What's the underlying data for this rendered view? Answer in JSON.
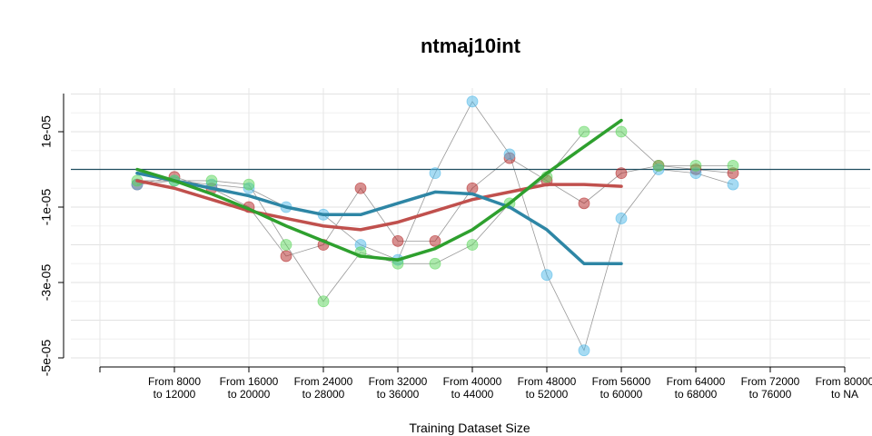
{
  "chart_data": {
    "type": "line",
    "title": "ntmaj10int",
    "xlabel": "Training Dataset Size",
    "ylabel": "",
    "ylim": [
      -5e-05,
      2e-05
    ],
    "y_ticks": [
      "1e-05",
      "-1e-05",
      "-3e-05",
      "-5e-05"
    ],
    "y_tick_values": [
      1e-05,
      -1e-05,
      -3e-05,
      -5e-05
    ],
    "categories": [
      [
        "From 8000",
        "to 12000"
      ],
      [
        "From 16000",
        "to 20000"
      ],
      [
        "From 24000",
        "to 28000"
      ],
      [
        "From 32000",
        "to 36000"
      ],
      [
        "From 40000",
        "to 44000"
      ],
      [
        "From 48000",
        "to 52000"
      ],
      [
        "From 56000",
        "to 60000"
      ],
      [
        "From 64000",
        "to 68000"
      ],
      [
        "From 72000",
        "to 76000"
      ],
      [
        "From 80000",
        "to NA"
      ]
    ],
    "x_positions": [
      1,
      2,
      3,
      4,
      5,
      6,
      7,
      8,
      9,
      10
    ],
    "reference_line_y": 0,
    "grid": true,
    "series": [
      {
        "color": "#b22222",
        "points": [
          {
            "x": 0.5,
            "y": -4e-06
          },
          {
            "x": 1,
            "y": -2e-06
          },
          {
            "x": 1.5,
            "y": -5e-06
          },
          {
            "x": 2,
            "y": -1e-05
          },
          {
            "x": 2.5,
            "y": -2.3e-05
          },
          {
            "x": 3,
            "y": -2e-05
          },
          {
            "x": 3.5,
            "y": -5e-06
          },
          {
            "x": 4,
            "y": -1.9e-05
          },
          {
            "x": 4.5,
            "y": -1.9e-05
          },
          {
            "x": 5,
            "y": -5e-06
          },
          {
            "x": 5.5,
            "y": 3e-06
          },
          {
            "x": 6,
            "y": -3e-06
          },
          {
            "x": 6.5,
            "y": -9e-06
          },
          {
            "x": 7,
            "y": -1e-06
          },
          {
            "x": 7.5,
            "y": 1e-06
          },
          {
            "x": 8,
            "y": 0
          },
          {
            "x": 8.5,
            "y": -1e-06
          }
        ],
        "trend": [
          {
            "x": 0.5,
            "y": -3e-06
          },
          {
            "x": 1,
            "y": -5e-06
          },
          {
            "x": 1.5,
            "y": -8e-06
          },
          {
            "x": 2,
            "y": -1.1e-05
          },
          {
            "x": 2.5,
            "y": -1.3e-05
          },
          {
            "x": 3,
            "y": -1.5e-05
          },
          {
            "x": 3.5,
            "y": -1.6e-05
          },
          {
            "x": 4,
            "y": -1.4e-05
          },
          {
            "x": 4.5,
            "y": -1.1e-05
          },
          {
            "x": 5,
            "y": -8e-06
          },
          {
            "x": 5.5,
            "y": -6e-06
          },
          {
            "x": 6,
            "y": -4e-06
          },
          {
            "x": 6.5,
            "y": -4e-06
          },
          {
            "x": 7,
            "y": -4.5e-06
          }
        ]
      },
      {
        "color": "#4db8e8",
        "points": [
          {
            "x": 0.5,
            "y": -4e-06
          },
          {
            "x": 1,
            "y": -3e-06
          },
          {
            "x": 1.5,
            "y": -4e-06
          },
          {
            "x": 2,
            "y": -5e-06
          },
          {
            "x": 2.5,
            "y": -1e-05
          },
          {
            "x": 3,
            "y": -1.2e-05
          },
          {
            "x": 3.5,
            "y": -2e-05
          },
          {
            "x": 4,
            "y": -2.4e-05
          },
          {
            "x": 4.5,
            "y": -1e-06
          },
          {
            "x": 5,
            "y": 1.8e-05
          },
          {
            "x": 5.5,
            "y": 4e-06
          },
          {
            "x": 6,
            "y": -2.8e-05
          },
          {
            "x": 6.5,
            "y": -4.8e-05
          },
          {
            "x": 7,
            "y": -1.3e-05
          },
          {
            "x": 7.5,
            "y": 0
          },
          {
            "x": 8,
            "y": -1e-06
          },
          {
            "x": 8.5,
            "y": -4e-06
          }
        ],
        "trend": [
          {
            "x": 0.5,
            "y": -1e-06
          },
          {
            "x": 1,
            "y": -3e-06
          },
          {
            "x": 1.5,
            "y": -5e-06
          },
          {
            "x": 2,
            "y": -7e-06
          },
          {
            "x": 2.5,
            "y": -1e-05
          },
          {
            "x": 3,
            "y": -1.2e-05
          },
          {
            "x": 3.5,
            "y": -1.2e-05
          },
          {
            "x": 4,
            "y": -9e-06
          },
          {
            "x": 4.5,
            "y": -6e-06
          },
          {
            "x": 5,
            "y": -6.5e-06
          },
          {
            "x": 5.5,
            "y": -1e-05
          },
          {
            "x": 6,
            "y": -1.6e-05
          },
          {
            "x": 6.5,
            "y": -2.5e-05
          },
          {
            "x": 7,
            "y": -2.5e-05
          }
        ]
      },
      {
        "color": "#59d659",
        "points": [
          {
            "x": 0.5,
            "y": -3e-06
          },
          {
            "x": 1,
            "y": -3e-06
          },
          {
            "x": 1.5,
            "y": -3e-06
          },
          {
            "x": 2,
            "y": -4e-06
          },
          {
            "x": 2.5,
            "y": -2e-05
          },
          {
            "x": 3,
            "y": -3.5e-05
          },
          {
            "x": 3.5,
            "y": -2.2e-05
          },
          {
            "x": 4,
            "y": -2.5e-05
          },
          {
            "x": 4.5,
            "y": -2.5e-05
          },
          {
            "x": 5,
            "y": -2e-05
          },
          {
            "x": 5.5,
            "y": -9e-06
          },
          {
            "x": 6,
            "y": -2e-06
          },
          {
            "x": 6.5,
            "y": 1e-05
          },
          {
            "x": 7,
            "y": 1e-05
          },
          {
            "x": 7.5,
            "y": 1e-06
          },
          {
            "x": 8,
            "y": 1e-06
          },
          {
            "x": 8.5,
            "y": 1e-06
          }
        ],
        "trend": [
          {
            "x": 0.5,
            "y": 0
          },
          {
            "x": 1,
            "y": -3e-06
          },
          {
            "x": 1.5,
            "y": -6.5e-06
          },
          {
            "x": 2,
            "y": -1.05e-05
          },
          {
            "x": 2.5,
            "y": -1.5e-05
          },
          {
            "x": 3,
            "y": -1.9e-05
          },
          {
            "x": 3.5,
            "y": -2.3e-05
          },
          {
            "x": 4,
            "y": -2.4e-05
          },
          {
            "x": 4.5,
            "y": -2.1e-05
          },
          {
            "x": 5,
            "y": -1.6e-05
          },
          {
            "x": 5.5,
            "y": -9e-06
          },
          {
            "x": 6,
            "y": -1e-06
          },
          {
            "x": 6.5,
            "y": 6e-06
          },
          {
            "x": 7,
            "y": 1.3e-05
          }
        ]
      }
    ]
  }
}
